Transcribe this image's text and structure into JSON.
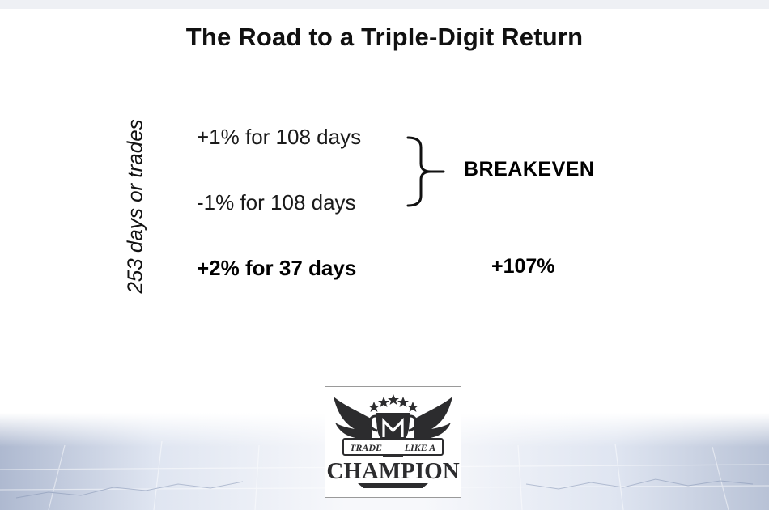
{
  "slide": {
    "title": "The Road to a Triple-Digit Return",
    "side_label": "253 days or trades"
  },
  "rules": [
    {
      "text": "+1% for 108 days"
    },
    {
      "text": "-1% for 108 days"
    },
    {
      "text": "+2% for 37 days"
    }
  ],
  "outcomes": {
    "breakeven": "BREAKEVEN",
    "result": "+107%"
  },
  "logo": {
    "line1": "TRADE",
    "line2": "LIKE A",
    "line3": "CHAMPION",
    "brand_color": "#2c2c2e",
    "icon": "trophy-wings-logo"
  }
}
